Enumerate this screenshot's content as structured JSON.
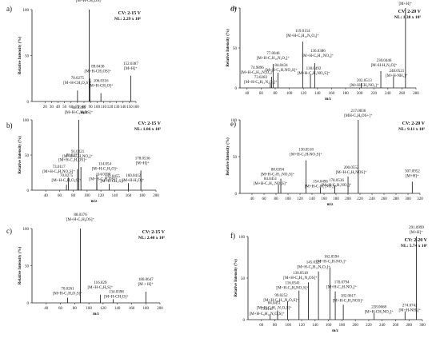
{
  "chart_data": [
    {
      "type": "bar",
      "panel": "a)",
      "ylabel": "Relative Intensity (%)",
      "xlabel": "m/z",
      "xlim": [
        0,
        160
      ],
      "ylim": [
        0,
        100
      ],
      "xticks": [
        20,
        30,
        40,
        50,
        60,
        70,
        80,
        90,
        100,
        110,
        120,
        130,
        140,
        150,
        160
      ],
      "yticks": [
        0,
        50,
        100
      ],
      "cv": "CV: 2-15 V",
      "nl": "NL: 2.29 x 10⁶",
      "peaks": [
        {
          "x": 70.0275,
          "y": 12,
          "mz": "70.0275",
          "ion": "[M+H-CH₂O₂S]⁺"
        },
        {
          "x": 88.0394,
          "y": 100,
          "mz": "88.0394",
          "ion": "[M+H-CH₄OS]⁺"
        },
        {
          "x": 89.0438,
          "y": 25,
          "mz": "89.0438",
          "ion": "[M+H-CH₃OS]⁺"
        },
        {
          "x": 106.0316,
          "y": 9,
          "mz": "106.0316",
          "ion": "[M+H-CH₂O]⁺"
        },
        {
          "x": 152.0387,
          "y": 28,
          "mz": "152.0387",
          "ion": "[M+H]⁺"
        }
      ]
    },
    {
      "type": "bar",
      "panel": "b)",
      "ylabel": "Relative Intensity (%)",
      "xlabel": "m/z",
      "xlim": [
        20,
        200
      ],
      "ylim": [
        0,
        100
      ],
      "xticks": [
        40,
        60,
        80,
        100,
        120,
        140,
        160,
        180,
        200
      ],
      "yticks": [
        0,
        50,
        100
      ],
      "cv": "CV: 2-15 V",
      "nl": "NL: 1.06 x 10⁵",
      "peaks": [
        {
          "x": 70.0275,
          "y": 8,
          "mz": "70.0275",
          "ion": "[M+H-C₃H₂O₄S]⁺"
        },
        {
          "x": 73.0117,
          "y": 18,
          "mz": "73.0117",
          "ion": "[M+H-C₃H₇NO₂S]⁺"
        },
        {
          "x": 86.0229,
          "y": 30,
          "mz": "86.0229",
          "ion": "[M+H-C₃H₂OS]⁺"
        },
        {
          "x": 88.0394,
          "y": 100,
          "mz": "88.0394",
          "ion": "[M+H-C₂H₆OS]⁺"
        },
        {
          "x": 114.039,
          "y": 14,
          "mz": "114.0390",
          "ion": "[M+H-C₂H₄OS]⁺"
        },
        {
          "x": 91.0221,
          "y": 33,
          "mz": "91.0221",
          "ion": "[M+H-C₃H₂NO₂]⁺"
        },
        {
          "x": 114.054,
          "y": 22,
          "mz": "114.054",
          "ion": "[M+H-C₂H₆O]⁺"
        },
        {
          "x": 132.0455,
          "y": 9,
          "mz": "132.0455",
          "ion": "[M+H-CH₂S]⁺"
        },
        {
          "x": 160.0412,
          "y": 10,
          "mz": "160.0412",
          "ion": "[M+H-H₂O]⁺"
        },
        {
          "x": 178.0536,
          "y": 28,
          "mz": "178.0536",
          "ion": "[M+H]⁺"
        }
      ]
    },
    {
      "type": "bar",
      "panel": "c)",
      "ylabel": "Relative Intensity (%)",
      "xlabel": "m/z",
      "xlim": [
        20,
        200
      ],
      "ylim": [
        0,
        100
      ],
      "xticks": [
        40,
        60,
        80,
        100,
        120,
        140,
        160,
        180,
        200
      ],
      "yticks": [
        0,
        50,
        100
      ],
      "cv": "CV: 2-15 V",
      "nl": "NL: 2.40 x 10⁵",
      "peaks": [
        {
          "x": 70.0261,
          "y": 7,
          "mz": "70.0261",
          "ion": "[M+H-C₂H₄O₂S]⁺"
        },
        {
          "x": 88.0376,
          "y": 100,
          "mz": "88.0376",
          "ion": "[M+H-C₂H₆OS]⁺"
        },
        {
          "x": 116.029,
          "y": 11,
          "mz": "116.029",
          "ion": "[M+H-C₂H₆S]⁺"
        },
        {
          "x": 134.0398,
          "y": 5,
          "mz": "134.0398",
          "ion": "[M+H-CH₂O]⁺"
        },
        {
          "x": 180.0647,
          "y": 15,
          "mz": "180.0647",
          "ion": "[M + H]⁺"
        }
      ]
    },
    {
      "type": "bar",
      "panel": "d)",
      "ylabel": "Relative Intensity (%)",
      "xlabel": "m/z",
      "xlim": [
        30,
        280
      ],
      "ylim": [
        0,
        100
      ],
      "xticks": [
        40,
        60,
        80,
        100,
        120,
        140,
        160,
        180,
        200,
        220,
        240,
        260,
        280
      ],
      "yticks": [
        0,
        50,
        100
      ],
      "cv": "CV: 2-20 V",
      "nl": "NL: 1.38 x 10⁵",
      "peaks": [
        {
          "x": 73.0283,
          "y": 6,
          "mz": "73.0283",
          "ion": "[M+H-C₆H₁₁N₂O₄]⁺"
        },
        {
          "x": 74.9896,
          "y": 14,
          "mz": "74.9896",
          "ion": "[M+H-C₆H₁₀N₃O₄]⁺"
        },
        {
          "x": 77.0046,
          "y": 30,
          "mz": "77.0046",
          "ion": "[M+H-C₇H₁₀N₂O₄]⁺"
        },
        {
          "x": 84.0434,
          "y": 19,
          "mz": "84.0434",
          "ion": "[M+H-C₅H₇NO₂S]⁺"
        },
        {
          "x": 119.0154,
          "y": 58,
          "mz": "119.0154",
          "ion": "[M+H-C₄H₁₀N₂O₃]⁺"
        },
        {
          "x": 136.0386,
          "y": 31,
          "mz": "136.0386",
          "ion": "[M+H-C₅H₁₁NO₄]⁺"
        },
        {
          "x": 130.0492,
          "y": 17,
          "mz": "130.0492",
          "ion": "[M+H-C₃H₅NO₂S]⁺"
        },
        {
          "x": 202.0513,
          "y": 6,
          "mz": "202.0513",
          "ion": "[M+H-CH₅NO₂]⁺"
        },
        {
          "x": 230.0446,
          "y": 21,
          "mz": "230.0446",
          "ion": "[M+H-H₂N₂O]⁺"
        },
        {
          "x": 248.0521,
          "y": 14,
          "mz": "248.0521",
          "ion": "[M+H-NH₃]⁺"
        },
        {
          "x": 265.08,
          "y": 100,
          "mz": "265.0800",
          "ion": "[M+H]⁺"
        }
      ]
    },
    {
      "type": "bar",
      "panel": "e)",
      "ylabel": "Relative Intensity (%)",
      "xlabel": "m/z",
      "xlim": [
        20,
        320
      ],
      "ylim": [
        0,
        100
      ],
      "xticks": [
        40,
        60,
        80,
        100,
        120,
        140,
        160,
        180,
        200,
        220,
        240,
        260,
        280,
        300,
        320
      ],
      "yticks": [
        0,
        50,
        100
      ],
      "cv": "CV: 2-20 V",
      "nl": "NL: 9.11 x 10⁵",
      "peaks": [
        {
          "x": 84.0451,
          "y": 12,
          "mz": "84.0451",
          "ion": "[M+H-C₇H₁₁NO₃S]⁺"
        },
        {
          "x": 88.0394,
          "y": 20,
          "mz": "88.0394",
          "ion": "[M+H-C₇H₁₁NO₂S]⁺"
        },
        {
          "x": 130.0518,
          "y": 45,
          "mz": "130.0518",
          "ion": "[M+H-C₅H₇NO₃S]⁺"
        },
        {
          "x": 154.0496,
          "y": 8,
          "mz": "154.0496",
          "ion": "[M+H-C₇H₁₁NO₃]⁺"
        },
        {
          "x": 178.0536,
          "y": 10,
          "mz": "178.0536",
          "ion": "[M+H-C₅H₇NO₃]⁺"
        },
        {
          "x": 200.0552,
          "y": 23,
          "mz": "200.0552",
          "ion": "[M+H-C₃H₅NOS]⁺"
        },
        {
          "x": 217.0836,
          "y": 100,
          "mz": "217.0836",
          "ion": "[MH-C₃H₆OS+]⁺"
        },
        {
          "x": 307.0952,
          "y": 16,
          "mz": "307.0952",
          "ion": "[M+H]⁺"
        }
      ]
    },
    {
      "type": "bar",
      "panel": "f)",
      "ylabel": "Relative Intensity (%)",
      "xlabel": "m/z",
      "xlim": [
        40,
        300
      ],
      "ylim": [
        0,
        100
      ],
      "xticks": [
        60,
        80,
        100,
        120,
        140,
        160,
        180,
        200,
        220,
        240,
        260,
        280,
        300
      ],
      "yticks": [
        0,
        50,
        100
      ],
      "cv": "CV: 2-20 V",
      "nl": "NL: 5.74 x 10⁵",
      "peaks": [
        {
          "x": 73.0117,
          "y": 6,
          "mz": "73.0117",
          "ion": "[M+H-C₉H₁₇N₃O₂S]⁺"
        },
        {
          "x": 84.0451,
          "y": 11,
          "mz": "84.0451",
          "ion": "[M+H-C₆H₁₁N₂O₄S]⁺"
        },
        {
          "x": 99.0252,
          "y": 22,
          "mz": "99.0252",
          "ion": "[M+H-C₆H₁₄N₂O₃S]⁺"
        },
        {
          "x": 116.0541,
          "y": 35,
          "mz": "116.0541",
          "ion": "[M+H-C₆H₉NO₃S]⁺"
        },
        {
          "x": 130.0518,
          "y": 45,
          "mz": "130.0518",
          "ion": "[M+H-C₄H₁₁N₂OS]⁺"
        },
        {
          "x": 145.0327,
          "y": 58,
          "mz": "145.0327",
          "ion": "[M+H-C₆H₁₀N₂O₃]⁺"
        },
        {
          "x": 162.0594,
          "y": 63,
          "mz": "162.0594",
          "ion": "[M+H-C₃H₇NO₃]⁺"
        },
        {
          "x": 170.0794,
          "y": 34,
          "mz": "170.0794",
          "ion": "[M+H-C₃H₇NO₃]⁺"
        },
        {
          "x": 182.0617,
          "y": 18,
          "mz": "182.0617",
          "ion": "[M+H-C₃H₃NOS]⁺"
        },
        {
          "x": 228.0668,
          "y": 8,
          "mz": "228.0668",
          "ion": "[M+H-CH₅NO₂]⁺"
        },
        {
          "x": 274.0742,
          "y": 10,
          "mz": "274.0742",
          "ion": "[M+H-NH₃]⁺"
        },
        {
          "x": 291.0999,
          "y": 100,
          "mz": "291.0999",
          "ion": "[M+H]⁺"
        }
      ]
    }
  ]
}
